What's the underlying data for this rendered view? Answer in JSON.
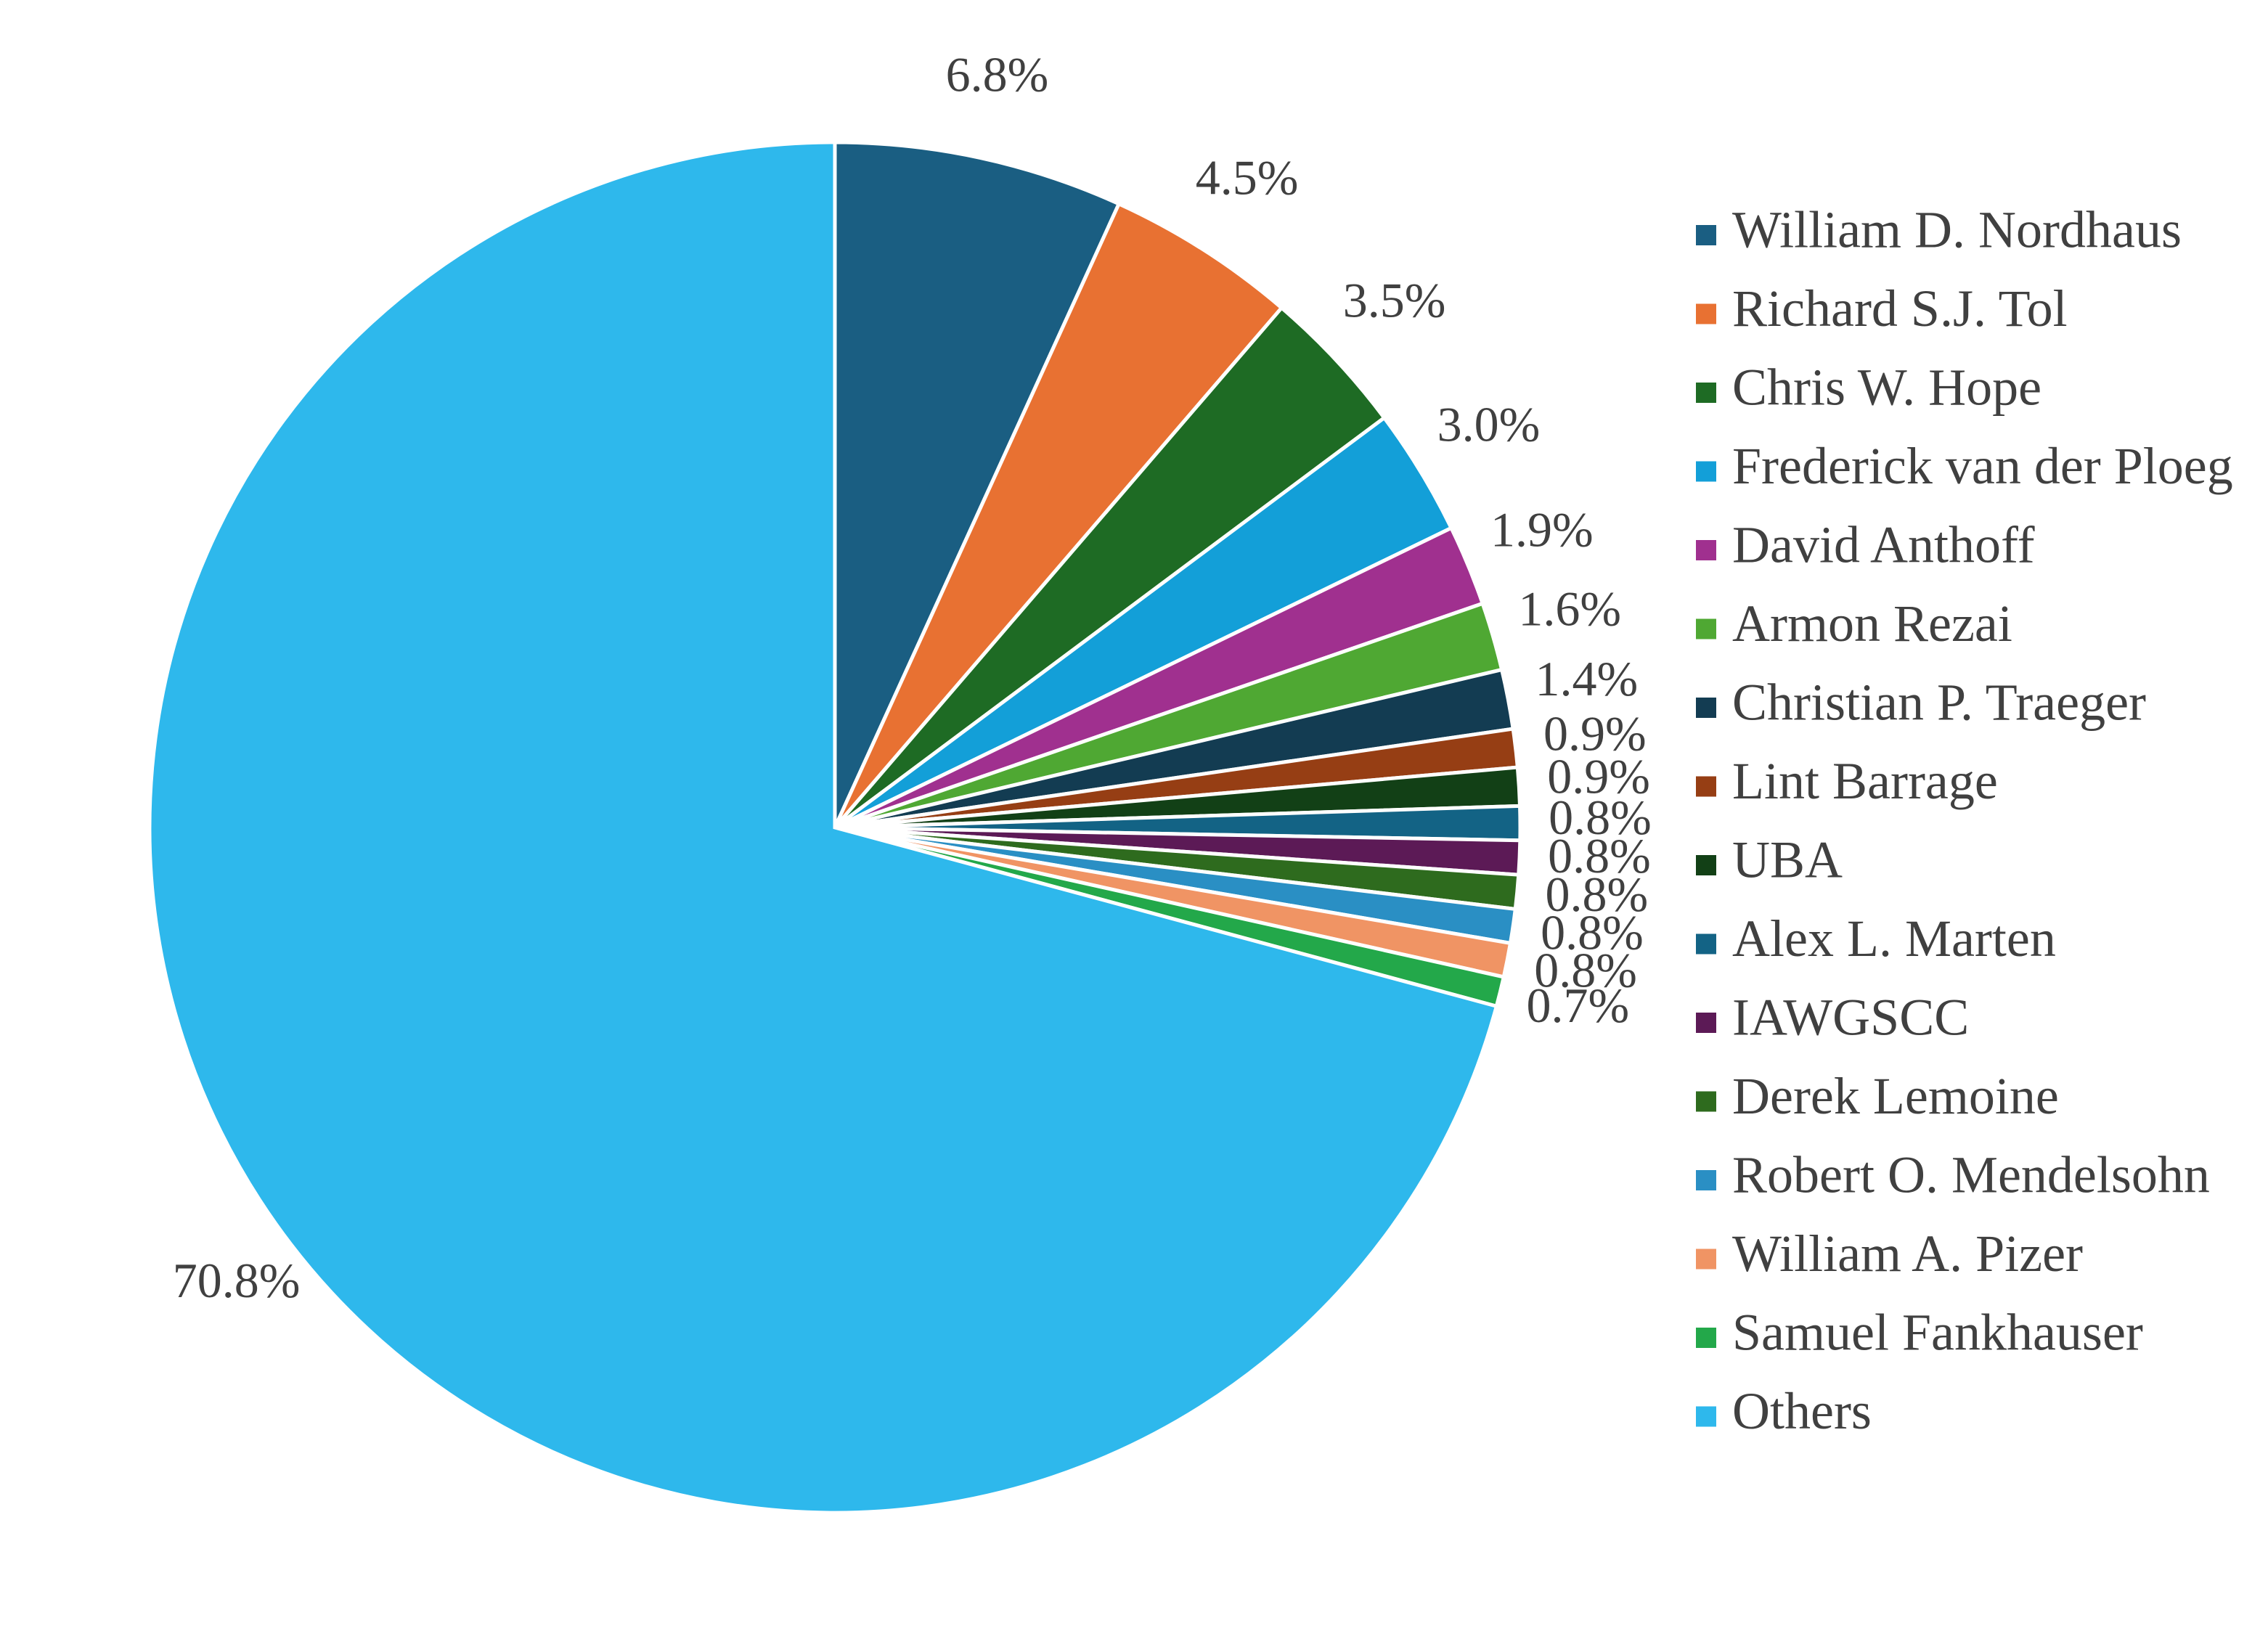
{
  "chart_data": {
    "type": "pie",
    "categories": [
      "William D. Nordhaus",
      "Richard S.J. Tol",
      "Chris W. Hope",
      "Frederick van der Ploeg",
      "David Anthoff",
      "Armon Rezai",
      "Christian P. Traeger",
      "Lint Barrage",
      "UBA",
      "Alex L. Marten",
      "IAWGSCC",
      "Derek Lemoine",
      "Robert O. Mendelsohn",
      "William A. Pizer",
      "Samuel Fankhauser",
      "Others"
    ],
    "values": [
      6.8,
      4.5,
      3.5,
      3.0,
      1.9,
      1.6,
      1.4,
      0.9,
      0.9,
      0.8,
      0.8,
      0.8,
      0.8,
      0.8,
      0.7,
      70.8
    ],
    "value_labels": [
      "6.8%",
      "4.5%",
      "3.5%",
      "3.0%",
      "1.9%",
      "1.6%",
      "1.4%",
      "0.9%",
      "0.9%",
      "0.8%",
      "0.8%",
      "0.8%",
      "0.8%",
      "0.8%",
      "0.7%",
      "70.8%"
    ],
    "colors": [
      "#1a5e82",
      "#e87132",
      "#1e6b24",
      "#139fd8",
      "#a0308f",
      "#4fa833",
      "#133c52",
      "#963e14",
      "#124016",
      "#136385",
      "#5c1a56",
      "#2e6b1e",
      "#2a8fc4",
      "#f09464",
      "#23a84a",
      "#2eb8ec"
    ],
    "legend": "right"
  }
}
